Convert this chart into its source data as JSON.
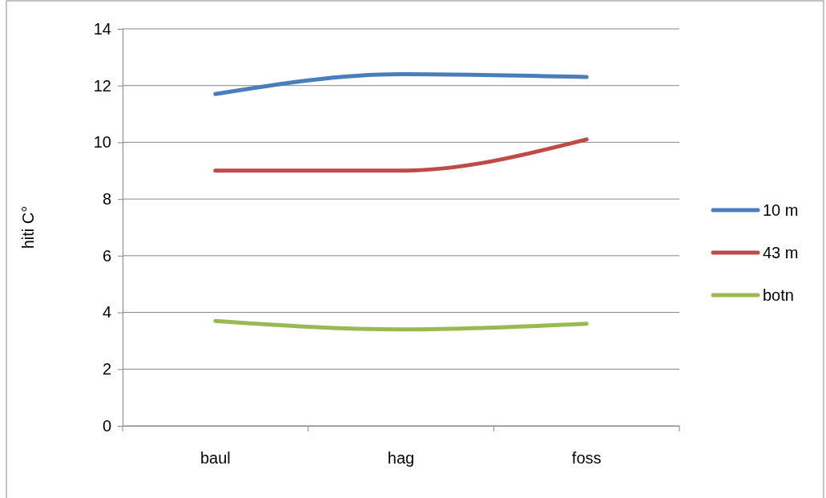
{
  "chart_data": {
    "type": "line",
    "ylabel": "hiti  C°",
    "categories": [
      "baul",
      "hag",
      "foss"
    ],
    "series": [
      {
        "name": "10 m",
        "color": "#4a7ebb",
        "values": [
          11.7,
          12.4,
          12.3
        ]
      },
      {
        "name": "43 m",
        "color": "#be4b48",
        "values": [
          9.0,
          9.0,
          10.1
        ]
      },
      {
        "name": "botn",
        "color": "#98b954",
        "values": [
          3.7,
          3.4,
          3.6
        ]
      }
    ],
    "ylim": [
      0,
      14
    ],
    "yticks": [
      0,
      2,
      4,
      6,
      8,
      10,
      12,
      14
    ],
    "grid": "y",
    "legend": "right",
    "marker": "none",
    "line_style": "solid"
  }
}
